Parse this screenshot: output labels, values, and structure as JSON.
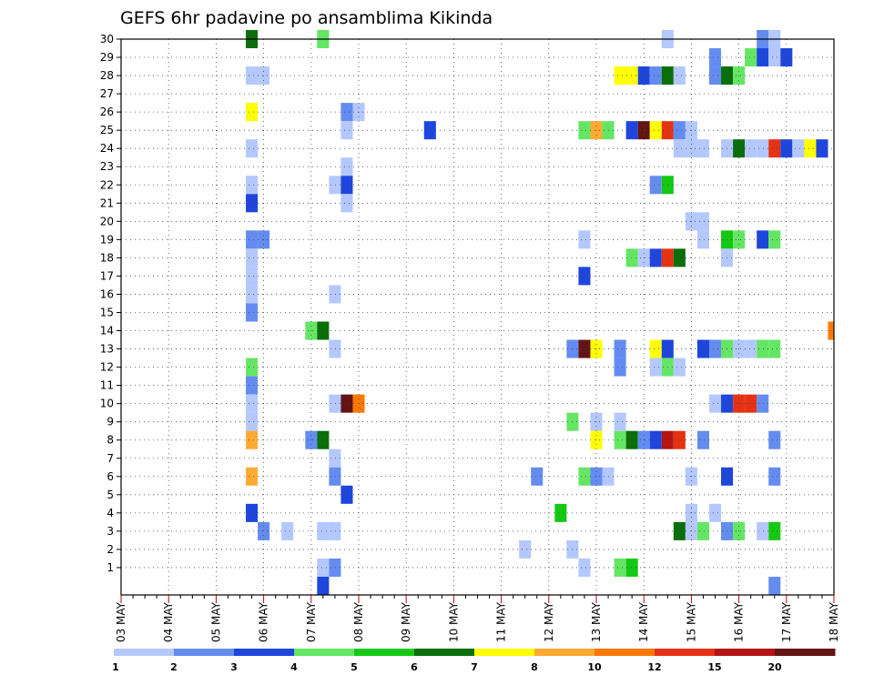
{
  "chart_data": {
    "type": "heatmap",
    "title": "GEFS 6hr padavine po ansamblima Kikinda",
    "xlabel": "",
    "ylabel": "",
    "x_ticks": [
      "03 MAY",
      "04 MAY",
      "05 MAY",
      "06 MAY",
      "07 MAY",
      "08 MAY",
      "09 MAY",
      "10 MAY",
      "11 MAY",
      "12 MAY",
      "13 MAY",
      "14 MAY",
      "15 MAY",
      "16 MAY",
      "17 MAY",
      "18 MAY"
    ],
    "x_range": [
      "03 MAY 00Z",
      "18 MAY 00Z"
    ],
    "x_step_hours": 6,
    "y_ticks": [
      1,
      2,
      3,
      4,
      5,
      6,
      7,
      8,
      9,
      10,
      11,
      12,
      13,
      14,
      15,
      16,
      17,
      18,
      19,
      20,
      21,
      22,
      23,
      24,
      25,
      26,
      27,
      28,
      29,
      30
    ],
    "y_range": [
      0,
      30
    ],
    "grid": true,
    "legend": {
      "placement": "bottom",
      "labels": [
        "1",
        "2",
        "3",
        "4",
        "5",
        "6",
        "7",
        "8",
        "10",
        "12",
        "15",
        "20"
      ],
      "colors": [
        "#b4c8ff",
        "#648cf0",
        "#1e46dc",
        "#64e664",
        "#14c814",
        "#0a6e0a",
        "#ffff00",
        "#ffaa32",
        "#ff7800",
        "#e63214",
        "#b41414",
        "#641414"
      ]
    },
    "cell_format": "[member, x_step_index, color_class] — x_step_index counts 6-hour steps from 03 MAY 00Z; color_class indexes legend.colors (0 = 1–2 mm … 11 = above 20 mm)",
    "cells": [
      [
        30,
        11,
        5
      ],
      [
        30,
        17,
        3
      ],
      [
        30,
        46,
        0
      ],
      [
        30,
        54,
        1
      ],
      [
        30,
        55,
        0
      ],
      [
        29,
        50,
        1
      ],
      [
        29,
        53,
        3
      ],
      [
        29,
        54,
        2
      ],
      [
        29,
        55,
        0
      ],
      [
        29,
        56,
        2
      ],
      [
        28,
        11,
        0
      ],
      [
        28,
        12,
        0
      ],
      [
        28,
        42,
        6
      ],
      [
        28,
        43,
        6
      ],
      [
        28,
        44,
        2
      ],
      [
        28,
        45,
        1
      ],
      [
        28,
        46,
        5
      ],
      [
        28,
        47,
        0
      ],
      [
        28,
        50,
        1
      ],
      [
        28,
        51,
        5
      ],
      [
        28,
        52,
        3
      ],
      [
        26,
        11,
        6
      ],
      [
        26,
        19,
        1
      ],
      [
        26,
        20,
        0
      ],
      [
        25,
        19,
        0
      ],
      [
        25,
        26,
        2
      ],
      [
        25,
        39,
        3
      ],
      [
        25,
        40,
        7
      ],
      [
        25,
        41,
        3
      ],
      [
        25,
        43,
        2
      ],
      [
        25,
        44,
        11
      ],
      [
        25,
        45,
        6
      ],
      [
        25,
        46,
        9
      ],
      [
        25,
        47,
        1
      ],
      [
        25,
        48,
        0
      ],
      [
        24,
        11,
        0
      ],
      [
        24,
        47,
        0
      ],
      [
        24,
        48,
        0
      ],
      [
        24,
        49,
        0
      ],
      [
        24,
        51,
        0
      ],
      [
        24,
        52,
        5
      ],
      [
        24,
        53,
        0
      ],
      [
        24,
        54,
        0
      ],
      [
        24,
        55,
        9
      ],
      [
        24,
        56,
        2
      ],
      [
        24,
        57,
        0
      ],
      [
        24,
        58,
        6
      ],
      [
        24,
        59,
        2
      ],
      [
        23,
        19,
        0
      ],
      [
        22,
        11,
        0
      ],
      [
        22,
        18,
        0
      ],
      [
        22,
        19,
        2
      ],
      [
        22,
        45,
        1
      ],
      [
        22,
        46,
        4
      ],
      [
        21,
        11,
        2
      ],
      [
        21,
        19,
        0
      ],
      [
        20,
        48,
        0
      ],
      [
        20,
        49,
        0
      ],
      [
        19,
        11,
        1
      ],
      [
        19,
        12,
        1
      ],
      [
        19,
        39,
        0
      ],
      [
        19,
        49,
        0
      ],
      [
        19,
        51,
        4
      ],
      [
        19,
        52,
        3
      ],
      [
        19,
        54,
        2
      ],
      [
        19,
        55,
        3
      ],
      [
        18,
        11,
        0
      ],
      [
        18,
        43,
        3
      ],
      [
        18,
        44,
        0
      ],
      [
        18,
        45,
        2
      ],
      [
        18,
        46,
        9
      ],
      [
        18,
        47,
        5
      ],
      [
        18,
        51,
        0
      ],
      [
        17,
        11,
        0
      ],
      [
        17,
        39,
        2
      ],
      [
        16,
        11,
        0
      ],
      [
        16,
        18,
        0
      ],
      [
        15,
        11,
        1
      ],
      [
        14,
        16,
        3
      ],
      [
        14,
        17,
        5
      ],
      [
        14,
        60,
        8
      ],
      [
        13,
        18,
        0
      ],
      [
        13,
        38,
        1
      ],
      [
        13,
        39,
        11
      ],
      [
        13,
        40,
        6
      ],
      [
        13,
        42,
        1
      ],
      [
        13,
        45,
        6
      ],
      [
        13,
        46,
        2
      ],
      [
        13,
        49,
        2
      ],
      [
        13,
        50,
        1
      ],
      [
        13,
        51,
        3
      ],
      [
        13,
        52,
        0
      ],
      [
        13,
        53,
        0
      ],
      [
        13,
        54,
        3
      ],
      [
        13,
        55,
        3
      ],
      [
        12,
        11,
        3
      ],
      [
        12,
        42,
        1
      ],
      [
        12,
        45,
        0
      ],
      [
        12,
        46,
        3
      ],
      [
        12,
        47,
        0
      ],
      [
        11,
        11,
        1
      ],
      [
        10,
        11,
        0
      ],
      [
        10,
        18,
        0
      ],
      [
        10,
        19,
        11
      ],
      [
        10,
        20,
        8
      ],
      [
        10,
        50,
        0
      ],
      [
        10,
        51,
        2
      ],
      [
        10,
        52,
        9
      ],
      [
        10,
        53,
        9
      ],
      [
        10,
        54,
        1
      ],
      [
        9,
        11,
        0
      ],
      [
        9,
        38,
        3
      ],
      [
        9,
        40,
        0
      ],
      [
        9,
        42,
        0
      ],
      [
        8,
        11,
        7
      ],
      [
        8,
        16,
        1
      ],
      [
        8,
        17,
        5
      ],
      [
        8,
        40,
        6
      ],
      [
        8,
        42,
        3
      ],
      [
        8,
        43,
        5
      ],
      [
        8,
        44,
        1
      ],
      [
        8,
        45,
        2
      ],
      [
        8,
        46,
        10
      ],
      [
        8,
        47,
        9
      ],
      [
        8,
        49,
        1
      ],
      [
        8,
        55,
        1
      ],
      [
        7,
        18,
        0
      ],
      [
        6,
        11,
        7
      ],
      [
        6,
        18,
        1
      ],
      [
        6,
        35,
        1
      ],
      [
        6,
        39,
        3
      ],
      [
        6,
        40,
        1
      ],
      [
        6,
        41,
        0
      ],
      [
        6,
        48,
        0
      ],
      [
        6,
        51,
        2
      ],
      [
        6,
        55,
        1
      ],
      [
        5,
        19,
        2
      ],
      [
        4,
        11,
        2
      ],
      [
        4,
        37,
        4
      ],
      [
        4,
        48,
        0
      ],
      [
        4,
        50,
        0
      ],
      [
        3,
        12,
        1
      ],
      [
        3,
        14,
        0
      ],
      [
        3,
        17,
        0
      ],
      [
        3,
        18,
        0
      ],
      [
        3,
        47,
        5
      ],
      [
        3,
        48,
        0
      ],
      [
        3,
        49,
        3
      ],
      [
        3,
        51,
        1
      ],
      [
        3,
        52,
        3
      ],
      [
        3,
        54,
        0
      ],
      [
        3,
        55,
        4
      ],
      [
        2,
        34,
        0
      ],
      [
        2,
        38,
        0
      ],
      [
        1,
        17,
        0
      ],
      [
        1,
        18,
        1
      ],
      [
        1,
        39,
        0
      ],
      [
        1,
        42,
        3
      ],
      [
        1,
        43,
        4
      ],
      [
        0,
        17,
        2
      ],
      [
        0,
        55,
        1
      ]
    ]
  }
}
